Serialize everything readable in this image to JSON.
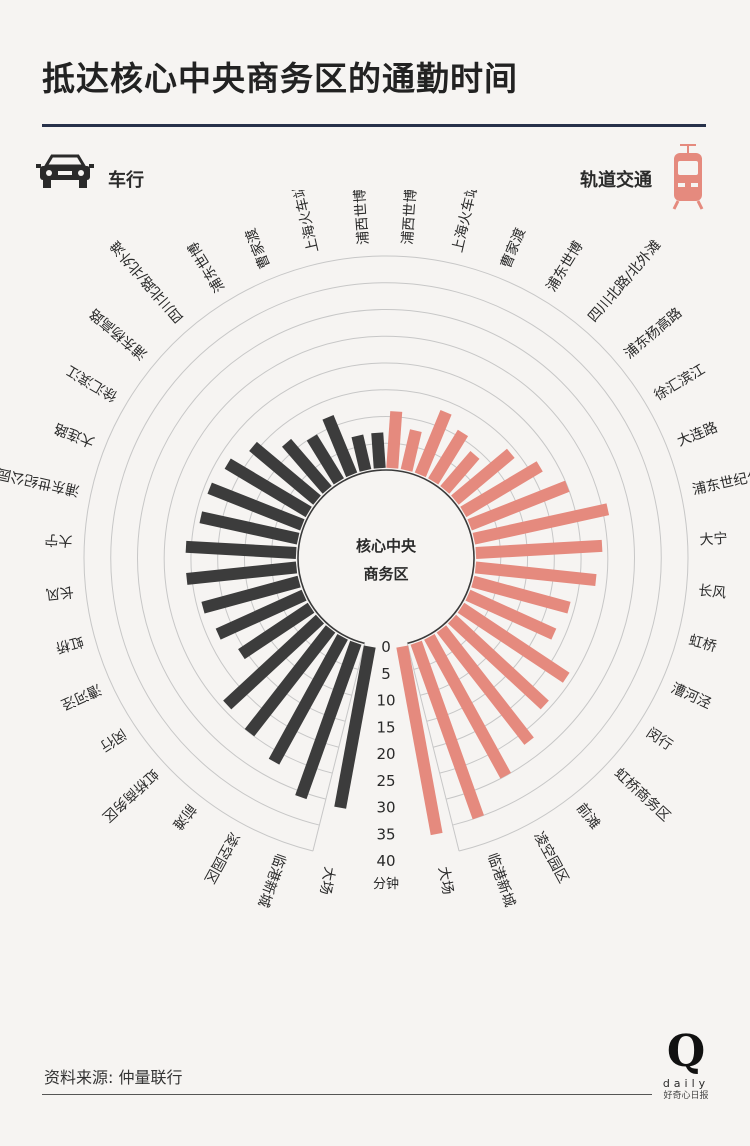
{
  "header": {
    "title": "抵达核心中央商务区的通勤时间"
  },
  "legend": {
    "car_label": "车行",
    "rail_label": "轨道交通"
  },
  "center": {
    "line1": "核心中央",
    "line2": "商务区"
  },
  "footer": {
    "source": "资料来源: 仲量联行",
    "logo_letter": "Q",
    "logo_word": "daily",
    "logo_sub": "好奇心日报"
  },
  "colors": {
    "car": "#3c3c3c",
    "rail": "#e58a7e",
    "grid": "#c7c7c7",
    "background": "#f6f4f2"
  },
  "chart_data": {
    "type": "radial-bar",
    "unit": "分钟",
    "ticks": [
      0,
      5,
      10,
      15,
      20,
      25,
      30,
      35,
      40
    ],
    "ylim": [
      0,
      40
    ],
    "categories": [
      "浦西世博",
      "上海火车站",
      "曹家渡",
      "浦东世博",
      "四川北路/北外滩",
      "浦东杨高路",
      "徐汇滨江",
      "大连路",
      "浦东世纪公园",
      "大宁",
      "长风",
      "虹桥",
      "漕河泾",
      "闵行",
      "虹桥商务区",
      "前滩",
      "凌空园区",
      "临港新城",
      "大场"
    ],
    "series": [
      {
        "name": "车行",
        "color": "#3c3c3c",
        "values": [
          7,
          7,
          12,
          10,
          12,
          16,
          18,
          19,
          19,
          21,
          21,
          19,
          18,
          16,
          24,
          25,
          27,
          31,
          31
        ]
      },
      {
        "name": "轨道交通",
        "color": "#e58a7e",
        "values": [
          11,
          8,
          13,
          11,
          9,
          14,
          17,
          20,
          26,
          24,
          23,
          19,
          18,
          24,
          24,
          27,
          30,
          35,
          36
        ]
      }
    ]
  }
}
